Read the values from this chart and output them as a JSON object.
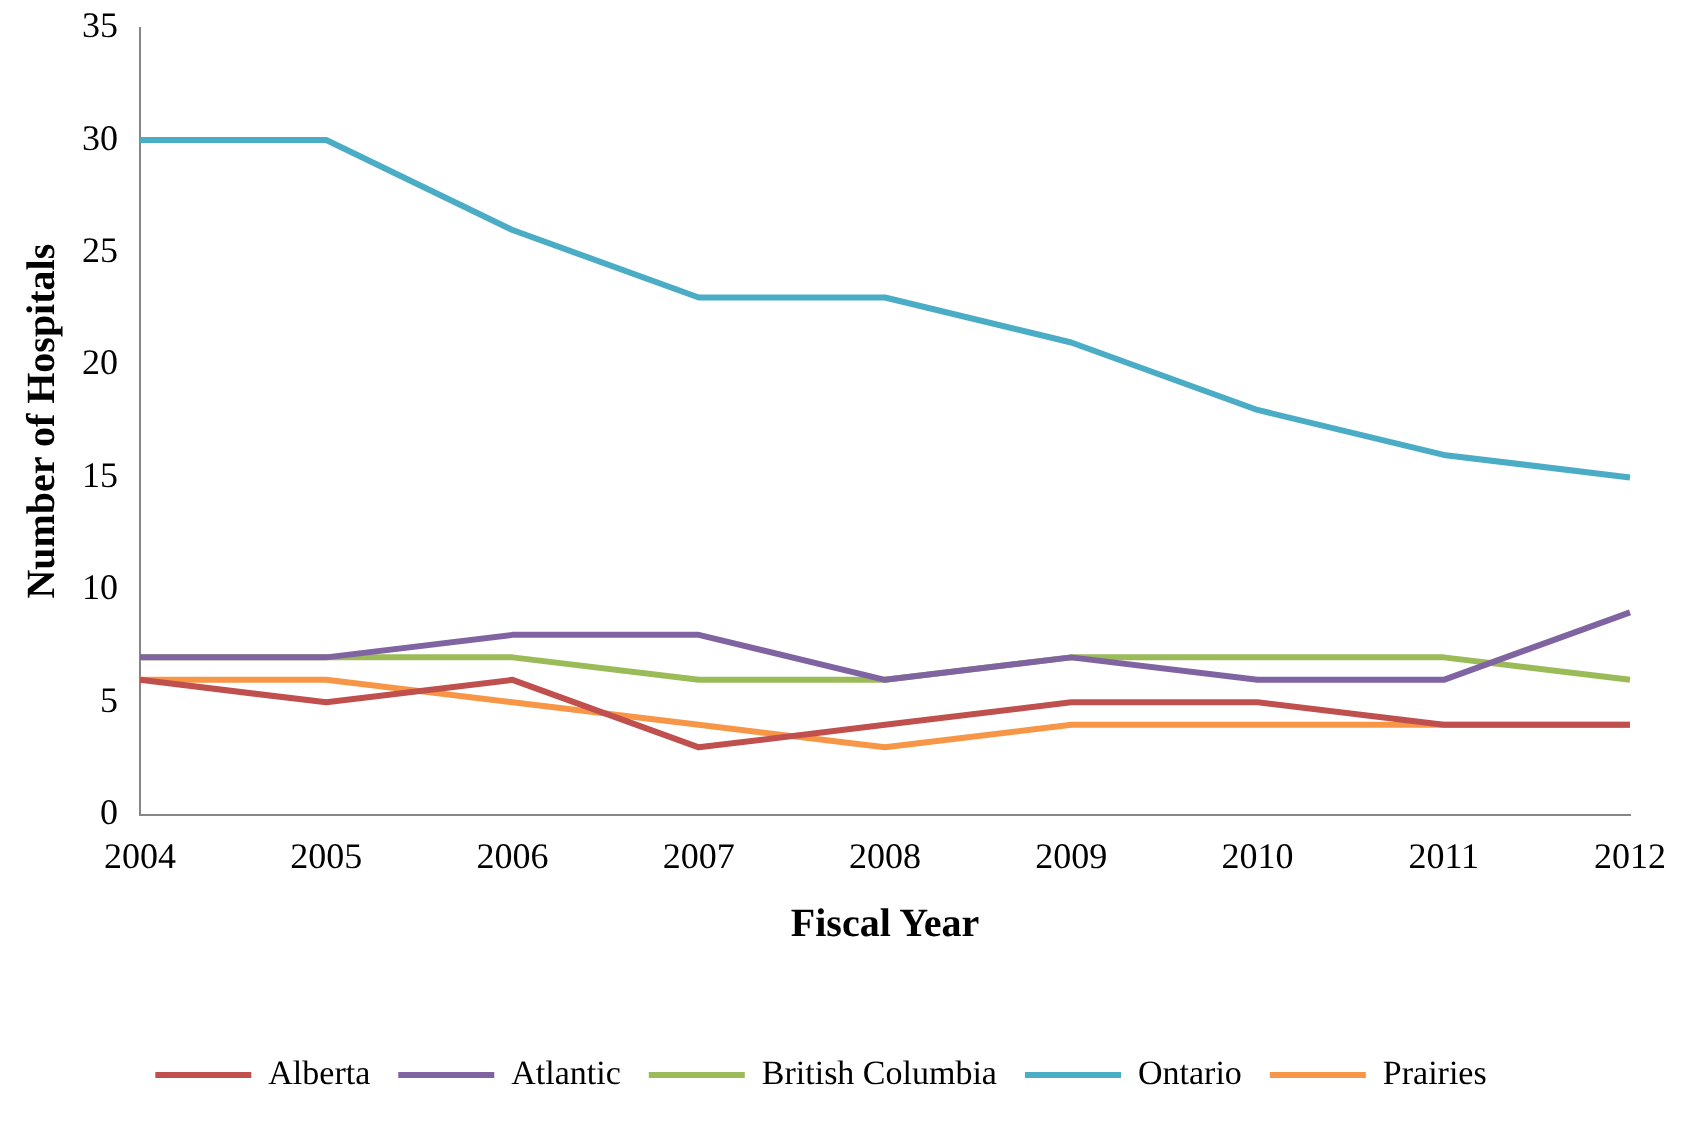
{
  "chart_data": {
    "type": "line",
    "xlabel": "Fiscal Year",
    "ylabel": "Number of Hospitals",
    "categories": [
      "2004",
      "2005",
      "2006",
      "2007",
      "2008",
      "2009",
      "2010",
      "2011",
      "2012"
    ],
    "series": [
      {
        "name": "Alberta",
        "color": "#c0504d",
        "values": [
          6,
          5,
          6,
          3,
          4,
          5,
          5,
          4,
          4
        ]
      },
      {
        "name": "Atlantic",
        "color": "#8064a2",
        "values": [
          7,
          7,
          8,
          8,
          6,
          7,
          6,
          6,
          9
        ]
      },
      {
        "name": "British Columbia",
        "color": "#9bbb59",
        "values": [
          7,
          7,
          7,
          6,
          6,
          7,
          7,
          7,
          6
        ]
      },
      {
        "name": "Ontario",
        "color": "#4bacc6",
        "values": [
          30,
          30,
          26,
          23,
          23,
          21,
          18,
          16,
          15
        ]
      },
      {
        "name": "Prairies",
        "color": "#f79646",
        "values": [
          6,
          6,
          5,
          4,
          3,
          4,
          4,
          4,
          4
        ]
      }
    ],
    "ylim": [
      0,
      35
    ],
    "yticks": [
      0,
      5,
      10,
      15,
      20,
      25,
      30,
      35
    ],
    "grid": false,
    "legend": "bottom",
    "marker": "none",
    "line_style": "solid"
  }
}
